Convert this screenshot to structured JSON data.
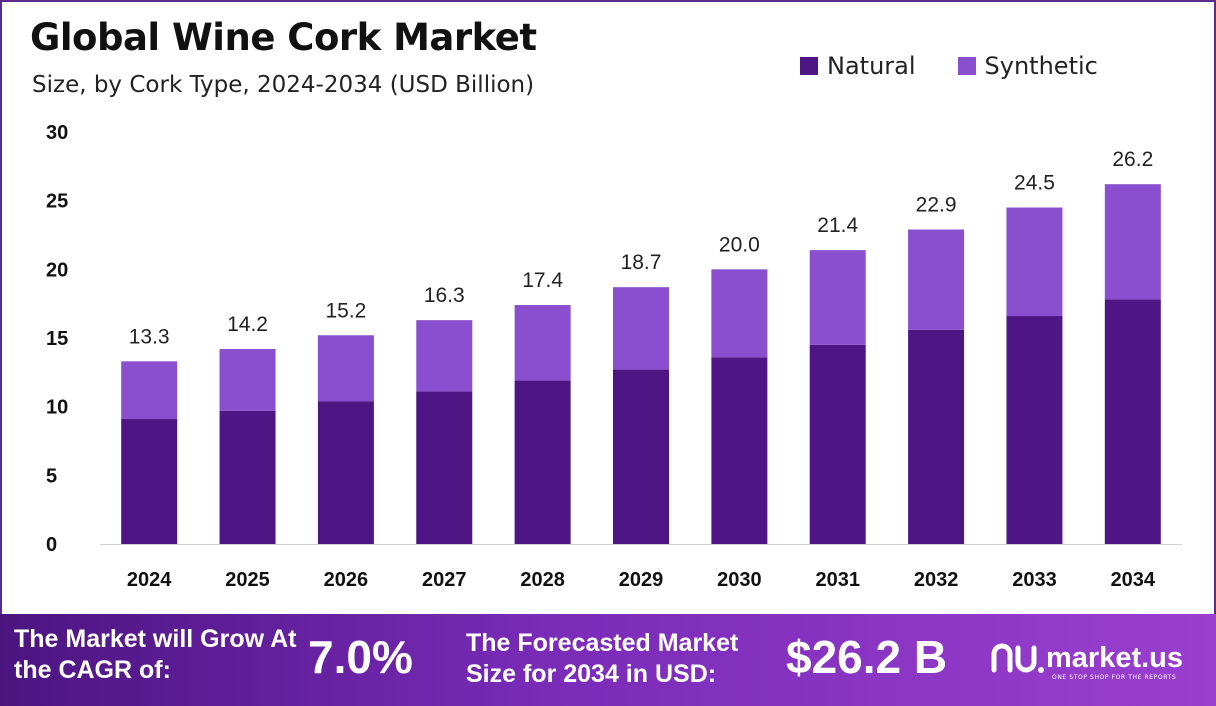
{
  "title": "Global Wine Cork Market",
  "subtitle": "Size, by Cork Type, 2024-2034 (USD Billion)",
  "legend": [
    {
      "name": "Natural",
      "color": "#4e1585"
    },
    {
      "name": "Synthetic",
      "color": "#8a4fcf"
    }
  ],
  "chart_data": {
    "type": "bar",
    "stacked": true,
    "title": "Global Wine Cork Market",
    "subtitle": "Size, by Cork Type, 2024-2034 (USD Billion)",
    "categories": [
      "2024",
      "2025",
      "2026",
      "2027",
      "2028",
      "2029",
      "2030",
      "2031",
      "2032",
      "2033",
      "2034"
    ],
    "series": [
      {
        "name": "Natural",
        "color": "#4e1585",
        "values": [
          9.1,
          9.7,
          10.4,
          11.1,
          11.9,
          12.7,
          13.6,
          14.5,
          15.6,
          16.6,
          17.8
        ]
      },
      {
        "name": "Synthetic",
        "color": "#8a4fcf",
        "values": [
          4.2,
          4.5,
          4.8,
          5.2,
          5.5,
          6.0,
          6.4,
          6.9,
          7.3,
          7.9,
          8.4
        ]
      }
    ],
    "totals": [
      "13.3",
      "14.2",
      "15.2",
      "16.3",
      "17.4",
      "18.7",
      "20.0",
      "21.4",
      "22.9",
      "24.5",
      "26.2"
    ],
    "ylim": [
      0,
      30
    ],
    "yticks": [
      0,
      5,
      10,
      15,
      20,
      25,
      30
    ],
    "grid": false,
    "legend_position": "top-right"
  },
  "footer": {
    "cagr_text": "The Market will Grow At the CAGR of:",
    "cagr_value": "7.0%",
    "forecast_text": "The Forecasted Market Size for 2034 in USD:",
    "forecast_value": "$26.2 B",
    "brand_name": "market.us",
    "brand_tagline": "ONE STOP SHOP FOR THE REPORTS"
  }
}
